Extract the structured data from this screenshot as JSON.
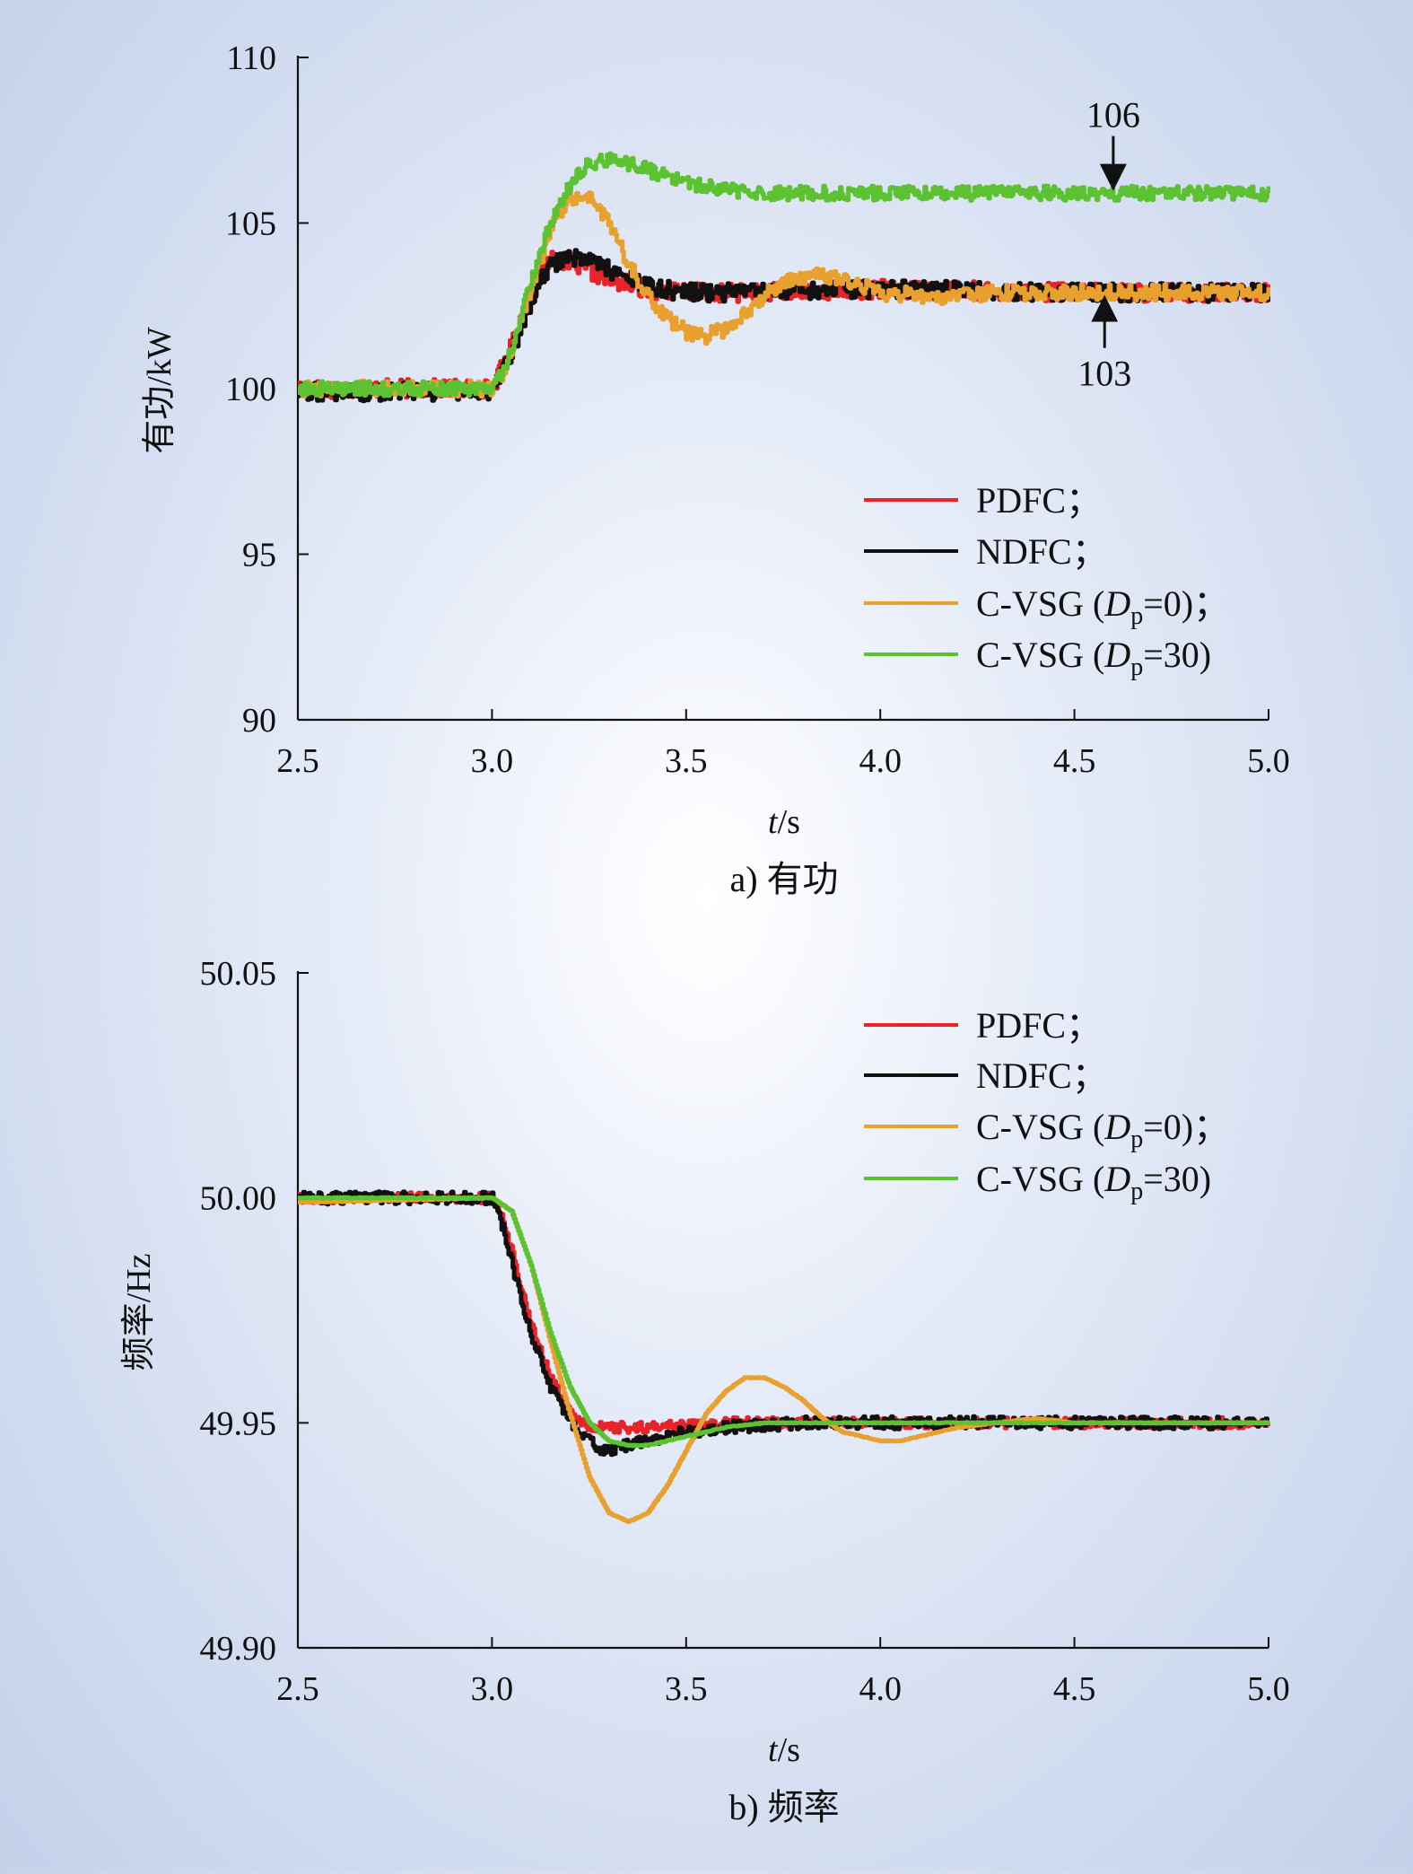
{
  "chart_data": [
    {
      "type": "line",
      "caption": "a) 有功",
      "xlabel": "t/s",
      "ylabel": "有功/kW",
      "xlim": [
        2.5,
        5.0
      ],
      "ylim": [
        90,
        110
      ],
      "xticks": [
        "2.5",
        "3.0",
        "3.5",
        "4.0",
        "4.5",
        "5.0"
      ],
      "yticks": [
        "90",
        "95",
        "100",
        "105",
        "110"
      ],
      "legend_position": "lower-right",
      "series": [
        {
          "name": "PDFC;",
          "color": "#e8232a",
          "x": [
            2.5,
            3.0,
            3.05,
            3.1,
            3.15,
            3.2,
            3.3,
            3.4,
            3.5,
            3.7,
            4.0,
            4.5,
            5.0
          ],
          "y": [
            100.0,
            100.0,
            101.3,
            103.0,
            104.0,
            103.8,
            103.3,
            103.0,
            102.9,
            102.9,
            103.0,
            102.9,
            102.9
          ]
        },
        {
          "name": "NDFC;",
          "color": "#111111",
          "x": [
            2.5,
            3.0,
            3.04,
            3.08,
            3.12,
            3.16,
            3.2,
            3.25,
            3.3,
            3.35,
            3.4,
            3.5,
            3.7,
            4.0,
            4.5,
            5.0
          ],
          "y": [
            99.9,
            99.9,
            100.8,
            102.0,
            103.2,
            103.8,
            104.0,
            103.9,
            103.6,
            103.3,
            103.1,
            102.9,
            102.9,
            103.0,
            102.9,
            102.9
          ]
        },
        {
          "name": "C-VSG (Dp=0);",
          "color": "#e8a02e",
          "x": [
            2.5,
            3.0,
            3.03,
            3.06,
            3.1,
            3.15,
            3.2,
            3.25,
            3.3,
            3.35,
            3.4,
            3.45,
            3.5,
            3.55,
            3.6,
            3.65,
            3.7,
            3.75,
            3.8,
            3.85,
            3.9,
            3.95,
            4.0,
            4.1,
            4.2,
            4.3,
            4.5,
            5.0
          ],
          "y": [
            100.0,
            100.0,
            100.5,
            101.5,
            103.0,
            104.8,
            105.8,
            105.8,
            105.0,
            103.8,
            102.8,
            102.1,
            101.7,
            101.6,
            101.8,
            102.3,
            102.8,
            103.2,
            103.4,
            103.4,
            103.3,
            103.1,
            102.9,
            102.8,
            102.8,
            102.9,
            102.9,
            102.9
          ]
        },
        {
          "name": "C-VSG (Dp=30)",
          "color": "#5cc232",
          "x": [
            2.5,
            3.0,
            3.03,
            3.06,
            3.1,
            3.15,
            3.2,
            3.25,
            3.3,
            3.35,
            3.4,
            3.45,
            3.5,
            3.6,
            3.7,
            3.8,
            4.0,
            4.5,
            5.0
          ],
          "y": [
            100.0,
            100.0,
            100.5,
            101.6,
            103.3,
            105.0,
            106.2,
            106.8,
            106.9,
            106.8,
            106.6,
            106.4,
            106.2,
            106.0,
            105.9,
            105.9,
            105.9,
            105.9,
            105.9
          ]
        }
      ],
      "legend": [
        "PDFC；",
        "NDFC；",
        "C-VSG (",
        "p",
        "=0)；",
        "C-VSG (",
        "p",
        "=30)"
      ],
      "annotations": [
        {
          "text": "106",
          "x": 4.6,
          "y": 106.0,
          "direction": "down"
        },
        {
          "text": "103",
          "x": 4.55,
          "y": 102.8,
          "direction": "up"
        }
      ]
    },
    {
      "type": "line",
      "caption": "b) 频率",
      "xlabel": "t/s",
      "ylabel": "频率/Hz",
      "xlim": [
        2.5,
        5.0
      ],
      "ylim": [
        49.9,
        50.05
      ],
      "xticks": [
        "2.5",
        "3.0",
        "3.5",
        "4.0",
        "4.5",
        "5.0"
      ],
      "yticks": [
        "49.90",
        "49.95",
        "50.00",
        "50.05"
      ],
      "legend_position": "upper-right",
      "series": [
        {
          "name": "PDFC;",
          "color": "#e8232a",
          "x": [
            2.5,
            3.0,
            3.03,
            3.06,
            3.1,
            3.15,
            3.2,
            3.25,
            3.3,
            3.4,
            3.6,
            4.0,
            4.5,
            5.0
          ],
          "y": [
            50.0,
            50.0,
            49.995,
            49.985,
            49.972,
            49.96,
            49.952,
            49.949,
            49.949,
            49.949,
            49.95,
            49.95,
            49.95,
            49.95
          ]
        },
        {
          "name": "NDFC;",
          "color": "#111111",
          "x": [
            2.5,
            3.0,
            3.03,
            3.06,
            3.1,
            3.15,
            3.2,
            3.25,
            3.28,
            3.3,
            3.35,
            3.4,
            3.45,
            3.5,
            3.6,
            3.8,
            4.0,
            4.5,
            5.0
          ],
          "y": [
            50.0,
            50.0,
            49.993,
            49.982,
            49.97,
            49.958,
            49.95,
            49.946,
            49.944,
            49.944,
            49.945,
            49.946,
            49.947,
            49.948,
            49.949,
            49.95,
            49.95,
            49.95,
            49.95
          ]
        },
        {
          "name": "C-VSG (Dp=0);",
          "color": "#e8a02e",
          "x": [
            2.5,
            3.0,
            3.05,
            3.1,
            3.15,
            3.2,
            3.25,
            3.3,
            3.35,
            3.4,
            3.45,
            3.5,
            3.55,
            3.6,
            3.65,
            3.7,
            3.75,
            3.8,
            3.85,
            3.9,
            3.95,
            4.0,
            4.05,
            4.1,
            4.2,
            4.3,
            4.4,
            4.5,
            5.0
          ],
          "y": [
            49.999,
            50.0,
            49.997,
            49.985,
            49.968,
            49.952,
            49.938,
            49.93,
            49.928,
            49.93,
            49.936,
            49.944,
            49.952,
            49.957,
            49.96,
            49.96,
            49.958,
            49.955,
            49.951,
            49.948,
            49.947,
            49.946,
            49.946,
            49.947,
            49.949,
            49.95,
            49.951,
            49.95,
            49.95
          ]
        },
        {
          "name": "C-VSG (Dp=30)",
          "color": "#5cc232",
          "x": [
            2.5,
            3.0,
            3.05,
            3.1,
            3.15,
            3.2,
            3.25,
            3.3,
            3.35,
            3.4,
            3.5,
            3.6,
            3.7,
            3.8,
            4.0,
            4.5,
            5.0
          ],
          "y": [
            50.0,
            50.0,
            49.997,
            49.985,
            49.97,
            49.958,
            49.95,
            49.946,
            49.945,
            49.945,
            49.947,
            49.949,
            49.95,
            49.95,
            49.95,
            49.95,
            49.95
          ]
        }
      ],
      "legend": [
        "PDFC；",
        "NDFC；",
        "C-VSG (",
        "p",
        "=0)；",
        "C-VSG (",
        "p",
        "=30)"
      ],
      "annotations": []
    }
  ],
  "labels": {
    "t_italic": "t",
    "unit_s": "/s",
    "D_italic": "D"
  }
}
